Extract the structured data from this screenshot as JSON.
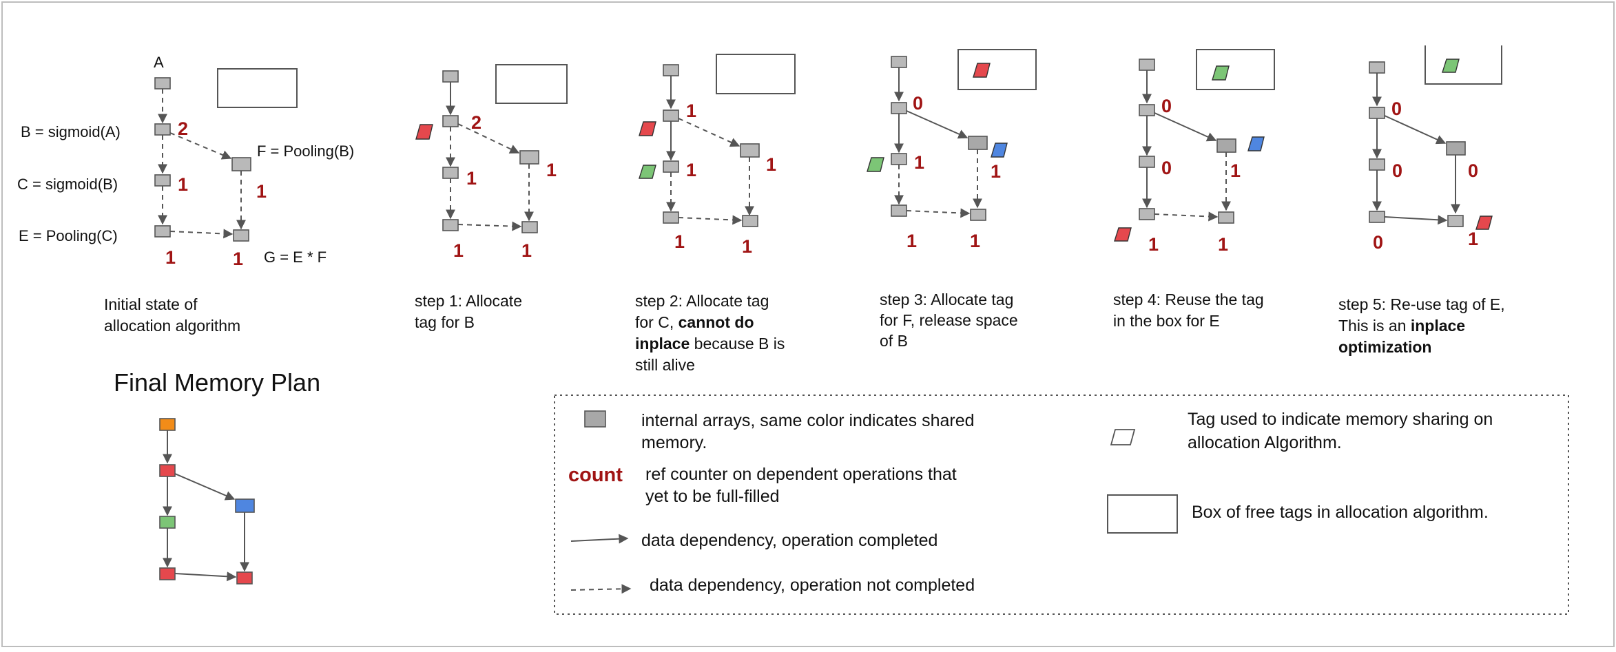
{
  "initial": {
    "node_a": "A",
    "b_label": "B = sigmoid(A)",
    "c_label": "C = sigmoid(B)",
    "e_label": "E = Pooling(C)",
    "f_label": "F = Pooling(B)",
    "g_label": "G = E * F",
    "counts": {
      "b": "2",
      "c": "1",
      "f": "1",
      "e": "1",
      "g": "1"
    },
    "caption_lines": [
      "Initial state of",
      "allocation algorithm"
    ]
  },
  "step1": {
    "counts": {
      "b": "2",
      "c": "1",
      "f": "1",
      "e": "1",
      "g": "1"
    },
    "caption_lines": [
      "step 1: Allocate",
      "tag for B"
    ]
  },
  "step2": {
    "counts": {
      "b": "1",
      "c": "1",
      "f": "1",
      "e": "1",
      "g": "1"
    },
    "caption": {
      "l1": "step 2: Allocate tag",
      "l2a": "for C, ",
      "l2b": "cannot do",
      "l3a": "inplace",
      "l3b": " because B is",
      "l4": "still alive"
    }
  },
  "step3": {
    "counts": {
      "b": "0",
      "c": "1",
      "f": "1",
      "e": "1",
      "g": "1"
    },
    "caption_lines": [
      "step 3: Allocate tag",
      "for F, release space",
      "of B"
    ]
  },
  "step4": {
    "counts": {
      "b": "0",
      "c": "0",
      "f": "1",
      "e": "1",
      "g": "1"
    },
    "caption_lines": [
      "step 4: Reuse the tag",
      "in the box for E"
    ]
  },
  "step5": {
    "counts": {
      "b": "0",
      "c": "0",
      "f": "0",
      "e": "0",
      "g": "1"
    },
    "caption": {
      "l1": "step 5: Re-use tag of E,",
      "l2a": "This is an ",
      "l2b": "inplace",
      "l3": "optimization"
    }
  },
  "final": {
    "title": "Final Memory Plan"
  },
  "legend": {
    "arrays_l1": "internal arrays, same color indicates shared",
    "arrays_l2": "memory.",
    "count_word": "count",
    "count_l1": "ref counter on dependent operations that",
    "count_l2": "yet to be full-filled",
    "solid_text": "data dependency, operation completed",
    "dashed_text": "data dependency, operation not completed",
    "tag_l1": "Tag used to indicate memory sharing on",
    "tag_l2": "allocation Algorithm.",
    "box_text": "Box of free tags in allocation algorithm."
  },
  "colors": {
    "red": "#e5484d",
    "green": "#7cc576",
    "blue": "#4f86e0",
    "orange": "#f28c18",
    "count": "#a01414",
    "node_gray": "#b9b9b9"
  }
}
